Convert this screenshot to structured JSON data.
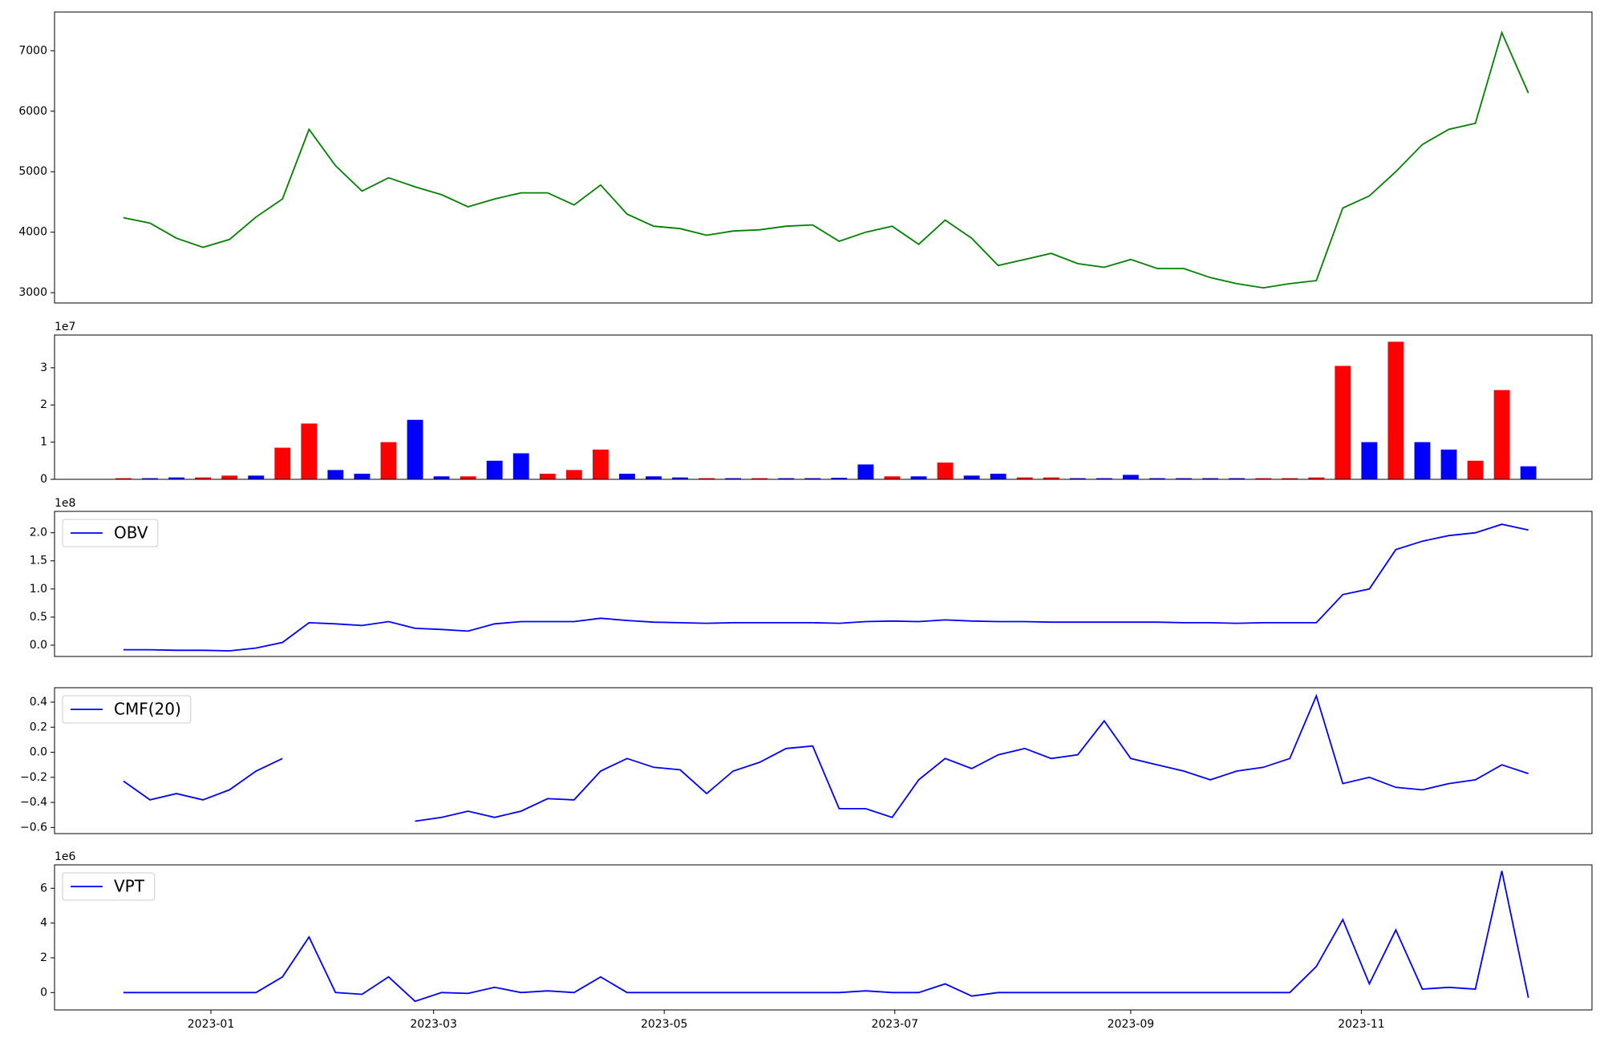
{
  "chart_data": [
    {
      "type": "line",
      "color": "green",
      "xlim": [
        -2.6,
        55.4
      ],
      "ylim": [
        2830,
        7640
      ],
      "yticks": [
        3000,
        4000,
        5000,
        6000,
        7000
      ],
      "values": [
        4240,
        4150,
        3900,
        3750,
        3880,
        4250,
        4550,
        5700,
        5100,
        4680,
        4900,
        4750,
        4620,
        4420,
        4550,
        4650,
        4650,
        4450,
        4780,
        4300,
        4100,
        4060,
        3950,
        4020,
        4040,
        4100,
        4120,
        3850,
        4000,
        4100,
        3800,
        4200,
        3900,
        3450,
        3550,
        3650,
        3480,
        3420,
        3550,
        3400,
        3400,
        3250,
        3150,
        3080,
        3150,
        3200,
        4400,
        4600,
        5000,
        5450,
        5700,
        5800,
        7300,
        6300
      ]
    },
    {
      "type": "bar",
      "offset_label": "1e7",
      "xlim": [
        -2.6,
        55.4
      ],
      "ylim": [
        0,
        3.88
      ],
      "yticks": [
        0,
        1,
        2,
        3
      ],
      "values": [
        0.03,
        0.03,
        0.05,
        0.05,
        0.1,
        0.1,
        0.85,
        1.5,
        0.25,
        0.15,
        1.0,
        1.6,
        0.08,
        0.08,
        0.5,
        0.7,
        0.15,
        0.25,
        0.8,
        0.15,
        0.08,
        0.05,
        0.03,
        0.03,
        0.03,
        0.03,
        0.03,
        0.04,
        0.4,
        0.08,
        0.08,
        0.45,
        0.1,
        0.15,
        0.05,
        0.05,
        0.03,
        0.03,
        0.12,
        0.03,
        0.03,
        0.03,
        0.03,
        0.03,
        0.03,
        0.05,
        3.05,
        1.0,
        3.7,
        1.0,
        0.8,
        0.5,
        2.4,
        0.35
      ],
      "colors": [
        "red",
        "blue",
        "blue",
        "red",
        "red",
        "blue",
        "red",
        "red",
        "blue",
        "blue",
        "red",
        "blue",
        "blue",
        "red",
        "blue",
        "blue",
        "red",
        "red",
        "red",
        "blue",
        "blue",
        "blue",
        "red",
        "blue",
        "red",
        "blue",
        "blue",
        "blue",
        "blue",
        "red",
        "blue",
        "red",
        "blue",
        "blue",
        "red",
        "red",
        "blue",
        "blue",
        "blue",
        "blue",
        "blue",
        "blue",
        "blue",
        "red",
        "red",
        "red",
        "red",
        "blue",
        "red",
        "blue",
        "blue",
        "red",
        "red",
        "blue"
      ]
    },
    {
      "type": "line",
      "offset_label": "1e8",
      "legend": "upper left",
      "xlim": [
        -2.6,
        55.4
      ],
      "ylim": [
        -0.2,
        2.38
      ],
      "yticks": [
        {
          "value": 0,
          "label": "0.0"
        },
        {
          "value": 0.5,
          "label": "0.5"
        },
        {
          "value": 1,
          "label": "1.0"
        },
        {
          "value": 1.5,
          "label": "1.5"
        },
        {
          "value": 2,
          "label": "2.0"
        }
      ],
      "series": [
        {
          "name": "OBV",
          "color": "blue",
          "values": [
            -0.08,
            -0.08,
            -0.09,
            -0.09,
            -0.1,
            -0.05,
            0.05,
            0.4,
            0.38,
            0.35,
            0.42,
            0.3,
            0.28,
            0.25,
            0.38,
            0.42,
            0.42,
            0.42,
            0.48,
            0.44,
            0.41,
            0.4,
            0.39,
            0.4,
            0.4,
            0.4,
            0.4,
            0.39,
            0.42,
            0.43,
            0.42,
            0.45,
            0.43,
            0.42,
            0.42,
            0.41,
            0.41,
            0.41,
            0.41,
            0.41,
            0.4,
            0.4,
            0.39,
            0.4,
            0.4,
            0.4,
            0.9,
            1.0,
            1.7,
            1.85,
            1.95,
            2.0,
            2.15,
            2.05
          ]
        }
      ]
    },
    {
      "type": "line",
      "legend": "upper left",
      "xlim": [
        -2.6,
        55.4
      ],
      "ylim": [
        -0.649,
        0.515
      ],
      "yticks": [
        {
          "value": -0.6,
          "label": "−0.6"
        },
        {
          "value": -0.4,
          "label": "−0.4"
        },
        {
          "value": -0.2,
          "label": "−0.2"
        },
        {
          "value": 0,
          "label": "0.0"
        },
        {
          "value": 0.2,
          "label": "0.2"
        },
        {
          "value": 0.4,
          "label": "0.4"
        }
      ],
      "series": [
        {
          "name": "CMF(20)",
          "color": "blue",
          "values": [
            -0.23,
            -0.38,
            -0.33,
            -0.38,
            -0.3,
            -0.15,
            -0.05,
            null,
            null,
            null,
            null,
            -0.55,
            -0.52,
            -0.47,
            -0.52,
            -0.47,
            -0.37,
            -0.38,
            -0.15,
            -0.05,
            -0.12,
            -0.14,
            -0.33,
            -0.15,
            -0.08,
            0.03,
            0.05,
            -0.45,
            -0.45,
            -0.52,
            -0.22,
            -0.05,
            -0.13,
            -0.02,
            0.03,
            -0.05,
            -0.02,
            0.25,
            -0.05,
            -0.1,
            -0.15,
            -0.22,
            -0.15,
            -0.12,
            -0.05,
            0.45,
            -0.25,
            -0.2,
            -0.28,
            -0.3,
            -0.25,
            -0.22,
            -0.1,
            -0.17
          ]
        }
      ]
    },
    {
      "type": "line",
      "offset_label": "1e6",
      "legend": "upper left",
      "xlim": [
        -2.6,
        55.4
      ],
      "ylim": [
        -1.0,
        7.35
      ],
      "yticks": [
        0,
        2,
        4,
        6
      ],
      "xticks": [
        {
          "value": 3.3,
          "label": "2023-01"
        },
        {
          "value": 11.7,
          "label": "2023-03"
        },
        {
          "value": 20.4,
          "label": "2023-05"
        },
        {
          "value": 29.1,
          "label": "2023-07"
        },
        {
          "value": 38.0,
          "label": "2023-09"
        },
        {
          "value": 46.7,
          "label": "2023-11"
        }
      ],
      "series": [
        {
          "name": "VPT",
          "color": "blue",
          "values": [
            0,
            0,
            0,
            0,
            0,
            0,
            0.9,
            3.2,
            0,
            -0.1,
            0.9,
            -0.5,
            0,
            -0.05,
            0.3,
            0,
            0.1,
            0,
            0.9,
            0,
            0,
            0,
            0,
            0,
            0,
            0,
            0,
            0,
            0.1,
            0,
            0,
            0.5,
            -0.2,
            0,
            0,
            0,
            0,
            0,
            0,
            0,
            0,
            0,
            0,
            0,
            0,
            1.5,
            4.2,
            0.5,
            3.6,
            0.2,
            0.3,
            0.2,
            7.0,
            -0.3
          ]
        }
      ]
    }
  ]
}
